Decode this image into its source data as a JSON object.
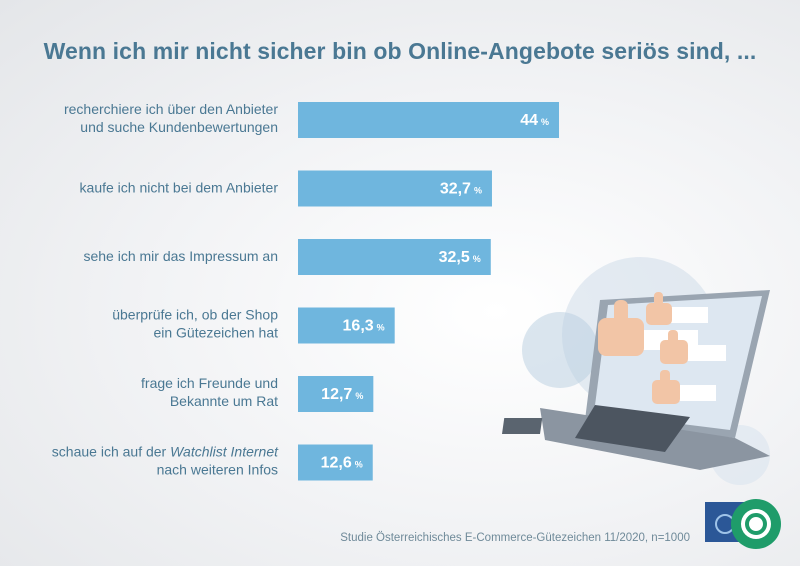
{
  "title": "Wenn ich mir nicht sicher bin ob Online-Angebote seriös sind, ...",
  "footer": "Studie Österreichisches E-Commerce-Gütezeichen 11/2020, n=1000",
  "colors": {
    "bar": "#6fb6de",
    "title": "#4a7893",
    "label": "#4a7893"
  },
  "chart_data": {
    "type": "bar",
    "orientation": "horizontal",
    "title": "Wenn ich mir nicht sicher bin ob Online-Angebote seriös sind, ...",
    "unit": "%",
    "categories": [
      [
        "recherchiere ich über den Anbieter",
        "und suche Kundenbewertungen"
      ],
      [
        "kaufe ich nicht bei dem Anbieter"
      ],
      [
        "sehe ich mir das Impressum an"
      ],
      [
        "überprüfe ich, ob der Shop",
        "ein Gütezeichen hat"
      ],
      [
        "frage ich Freunde und",
        "Bekannte um Rat"
      ],
      [
        "schaue ich auf der |Watchlist Internet|",
        "nach weiteren Infos"
      ]
    ],
    "values": [
      44,
      32.7,
      32.5,
      16.3,
      12.7,
      12.6
    ],
    "value_labels": [
      "44",
      "32,7",
      "32,5",
      "16,3",
      "12,7",
      "12,6"
    ],
    "xlim": [
      0,
      44
    ],
    "grid": false,
    "legend": "none"
  }
}
